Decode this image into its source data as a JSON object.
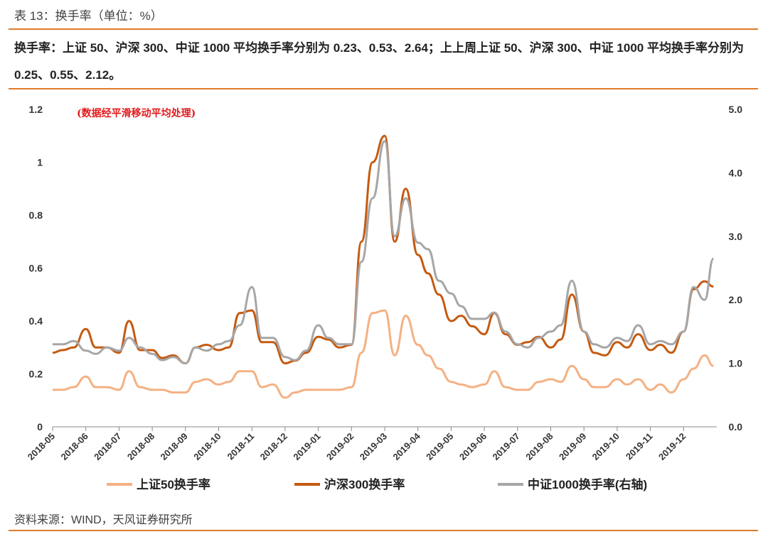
{
  "header": {
    "table_title": "表 13：换手率（单位：%）",
    "summary": "换手率：上证 50、沪深 300、中证 1000 平均换手率分别为 0.23、0.53、2.64；上上周上证 50、沪深 300、中证 1000 平均换手率分别为 0.25、0.55、2.12。"
  },
  "footer": {
    "source": "资料来源：WIND，天风证券研究所"
  },
  "chart_data": {
    "type": "line",
    "annotation": "(数据经平滑移动平均处理)",
    "left_axis": {
      "ylim": [
        0,
        1.2
      ],
      "ticks": [
        "0",
        "0.2",
        "0.4",
        "0.6",
        "0.8",
        "1",
        "1.2"
      ]
    },
    "right_axis": {
      "ylim": [
        0,
        5.0
      ],
      "ticks": [
        "0.0",
        "1.0",
        "2.0",
        "3.0",
        "4.0",
        "5.0"
      ]
    },
    "x_ticks": [
      "2018-05",
      "2018-06",
      "2018-07",
      "2018-08",
      "2018-09",
      "2018-10",
      "2018-11",
      "2018-12",
      "2019-01",
      "2019-02",
      "2019-03",
      "2019-04",
      "2019-05",
      "2019-06",
      "2019-07",
      "2019-08",
      "2019-09",
      "2019-10",
      "2019-11",
      "2019-12"
    ],
    "x": [
      "2018-05",
      "2018-05-10",
      "2018-05-20",
      "2018-06",
      "2018-06-10",
      "2018-06-20",
      "2018-07",
      "2018-07-10",
      "2018-07-20",
      "2018-08",
      "2018-08-10",
      "2018-08-20",
      "2018-09",
      "2018-09-10",
      "2018-09-20",
      "2018-10",
      "2018-10-10",
      "2018-10-20",
      "2018-11",
      "2018-11-10",
      "2018-11-20",
      "2018-12",
      "2018-12-10",
      "2018-12-20",
      "2019-01",
      "2019-01-10",
      "2019-01-20",
      "2019-02",
      "2019-02-10",
      "2019-02-20",
      "2019-03",
      "2019-03-10",
      "2019-03-20",
      "2019-04",
      "2019-04-10",
      "2019-04-20",
      "2019-05",
      "2019-05-10",
      "2019-05-20",
      "2019-06",
      "2019-06-10",
      "2019-06-20",
      "2019-07",
      "2019-07-10",
      "2019-07-20",
      "2019-08",
      "2019-08-10",
      "2019-08-20",
      "2019-09",
      "2019-09-10",
      "2019-09-20",
      "2019-10",
      "2019-10-10",
      "2019-10-20",
      "2019-11",
      "2019-11-10",
      "2019-11-20",
      "2019-12",
      "2019-12-10",
      "2019-12-20",
      "2019-12-28"
    ],
    "series": [
      {
        "name": "上证50换手率",
        "axis": "left",
        "color": "#f4b183",
        "values": [
          0.14,
          0.14,
          0.15,
          0.19,
          0.15,
          0.15,
          0.14,
          0.21,
          0.15,
          0.14,
          0.14,
          0.13,
          0.13,
          0.17,
          0.18,
          0.16,
          0.17,
          0.21,
          0.21,
          0.15,
          0.16,
          0.11,
          0.13,
          0.14,
          0.14,
          0.14,
          0.14,
          0.15,
          0.28,
          0.43,
          0.44,
          0.27,
          0.42,
          0.31,
          0.27,
          0.22,
          0.17,
          0.16,
          0.15,
          0.16,
          0.21,
          0.15,
          0.14,
          0.14,
          0.17,
          0.18,
          0.17,
          0.23,
          0.18,
          0.15,
          0.15,
          0.18,
          0.16,
          0.18,
          0.14,
          0.16,
          0.13,
          0.18,
          0.22,
          0.27,
          0.23
        ]
      },
      {
        "name": "沪深300换手率",
        "axis": "left",
        "color": "#c55a11",
        "values": [
          0.28,
          0.29,
          0.3,
          0.37,
          0.3,
          0.3,
          0.28,
          0.4,
          0.29,
          0.29,
          0.26,
          0.27,
          0.24,
          0.3,
          0.31,
          0.29,
          0.3,
          0.43,
          0.44,
          0.32,
          0.32,
          0.24,
          0.25,
          0.28,
          0.34,
          0.33,
          0.3,
          0.31,
          0.7,
          1.0,
          1.1,
          0.7,
          0.9,
          0.65,
          0.58,
          0.5,
          0.4,
          0.42,
          0.38,
          0.35,
          0.43,
          0.35,
          0.31,
          0.32,
          0.34,
          0.3,
          0.33,
          0.5,
          0.36,
          0.28,
          0.27,
          0.32,
          0.3,
          0.35,
          0.29,
          0.31,
          0.28,
          0.36,
          0.52,
          0.55,
          0.53
        ]
      },
      {
        "name": "中证1000换手率(右轴)",
        "axis": "right",
        "color": "#a6a6a6",
        "values": [
          1.3,
          1.3,
          1.35,
          1.2,
          1.15,
          1.25,
          1.2,
          1.4,
          1.25,
          1.15,
          1.05,
          1.1,
          1.0,
          1.25,
          1.2,
          1.3,
          1.35,
          1.6,
          2.2,
          1.4,
          1.4,
          1.1,
          1.05,
          1.2,
          1.6,
          1.4,
          1.3,
          1.3,
          2.6,
          3.6,
          4.5,
          3.0,
          3.6,
          2.9,
          2.8,
          2.3,
          2.1,
          1.9,
          1.7,
          1.7,
          1.8,
          1.5,
          1.3,
          1.25,
          1.4,
          1.5,
          1.6,
          2.3,
          1.5,
          1.3,
          1.25,
          1.4,
          1.35,
          1.6,
          1.3,
          1.35,
          1.3,
          1.5,
          2.2,
          2.0,
          2.65
        ]
      }
    ]
  }
}
